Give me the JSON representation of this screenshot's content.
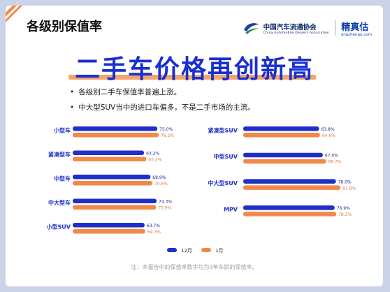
{
  "header": {
    "tag": "各级别保值率",
    "assoc_cn": "中国汽车流通协会",
    "assoc_en": "China Automobile Dealers Association",
    "jzg_cn": "精真估",
    "jzg_en": "jingzhengu.com"
  },
  "title": "二手车价格再创新高",
  "bullets": [
    "各级别二手车保值率普遍上涨。",
    "中大型SUV当中的进口车偏多，不是二手市场的主流。"
  ],
  "note": "注：本报告中的保值率数字均为3年车龄的保值率。",
  "colors": {
    "dec": "#1f2fc8",
    "jan": "#f08a4b",
    "title": "#1a2fd0",
    "label": "#1f2fc8"
  },
  "chart_data": [
    {
      "type": "bar",
      "orientation": "horizontal",
      "categories": [
        "小型车",
        "紧凑型车",
        "中型车",
        "中大型车",
        "小型SUV"
      ],
      "series": [
        {
          "name": "12月",
          "values": [
            75.0,
            63.2,
            68.9,
            74.3,
            63.7
          ],
          "labels": [
            "75.0%",
            "63.2%",
            "68.9%",
            "74.3%",
            "63.7%"
          ]
        },
        {
          "name": "1月",
          "values": [
            76.2,
            65.2,
            70.6,
            73.9,
            64.3
          ],
          "labels": [
            "76.2%",
            "65.2%",
            "70.6%",
            "73.9%",
            "64.3%"
          ]
        }
      ]
    },
    {
      "type": "bar",
      "orientation": "horizontal",
      "categories": [
        "紧凑型SUV",
        "中型SUV",
        "中大型SUV",
        "MPV"
      ],
      "series": [
        {
          "name": "12月",
          "values": [
            63.8,
            67.0,
            78.0,
            76.9
          ],
          "labels": [
            "63.8%",
            "67.0%",
            "78.0%",
            "76.9%"
          ]
        },
        {
          "name": "1月",
          "values": [
            64.6,
            69.7,
            81.8,
            78.3
          ],
          "labels": [
            "64.6%",
            "69.7%",
            "81.8%",
            "78.3%"
          ]
        }
      ]
    }
  ],
  "legend": [
    "12月",
    "1月"
  ],
  "watermark": "精真估"
}
